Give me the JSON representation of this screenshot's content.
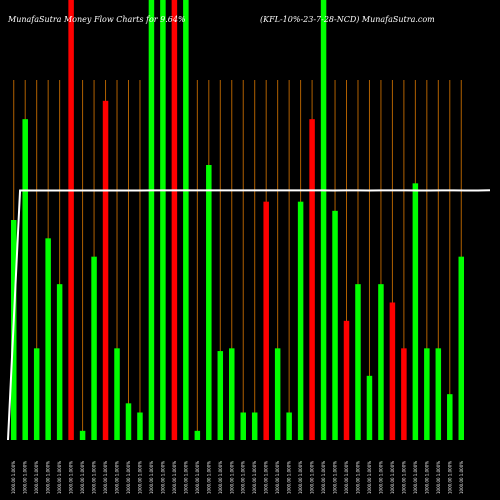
{
  "header": {
    "left": "MunafaSutra Money Flow Charts for 9.64% ",
    "right": "(KFL-10%-23-7-28-NCD) MunafaSutra.com"
  },
  "chart_data": {
    "type": "bar",
    "colors": {
      "up": "#00ff00",
      "down": "#ff0000",
      "grid": "#b06000",
      "line": "#ffffff",
      "background": "#000000"
    },
    "bars": [
      {
        "x": "1000.00 1.000%",
        "value": 24,
        "color": "up"
      },
      {
        "x": "1000.00 1.000%",
        "value": 35,
        "color": "up"
      },
      {
        "x": "1000.00 1.000%",
        "value": 10,
        "color": "up"
      },
      {
        "x": "1000.00 1.000%",
        "value": 22,
        "color": "up"
      },
      {
        "x": "1000.00 1.000%",
        "value": 17,
        "color": "up"
      },
      {
        "x": "1000.00 1.000%",
        "value": 48,
        "color": "down"
      },
      {
        "x": "1000.00 1.000%",
        "value": 1,
        "color": "up"
      },
      {
        "x": "1000.00 1.000%",
        "value": 20,
        "color": "up"
      },
      {
        "x": "1000.00 1.000%",
        "value": 37,
        "color": "down"
      },
      {
        "x": "1000.00 1.000%",
        "value": 10,
        "color": "up"
      },
      {
        "x": "1000.00 1.000%",
        "value": 4,
        "color": "up"
      },
      {
        "x": "1000.00 1.000%",
        "value": 3,
        "color": "up"
      },
      {
        "x": "1000.00 1.000%",
        "value": 48,
        "color": "up"
      },
      {
        "x": "1000.00 1.000%",
        "value": 48,
        "color": "up"
      },
      {
        "x": "1000.00 1.000%",
        "value": 48,
        "color": "down"
      },
      {
        "x": "1000.00 1.000%",
        "value": 48,
        "color": "up"
      },
      {
        "x": "1000.00 1.000%",
        "value": 1,
        "color": "up"
      },
      {
        "x": "1000.00 1.000%",
        "value": 30,
        "color": "up"
      },
      {
        "x": "1000.00 1.000%",
        "value": 9.7,
        "color": "up"
      },
      {
        "x": "1000.00 1.000%",
        "value": 10,
        "color": "up"
      },
      {
        "x": "1000.00 1.000%",
        "value": 3,
        "color": "up"
      },
      {
        "x": "1000.00 1.000%",
        "value": 3,
        "color": "up"
      },
      {
        "x": "1000.00 1.000%",
        "value": 26,
        "color": "down"
      },
      {
        "x": "1000.00 1.000%",
        "value": 10,
        "color": "up"
      },
      {
        "x": "1000.00 1.000%",
        "value": 3,
        "color": "up"
      },
      {
        "x": "1000.00 1.000%",
        "value": 26,
        "color": "up"
      },
      {
        "x": "1000.00 1.000%",
        "value": 35,
        "color": "down"
      },
      {
        "x": "1000.00 1.000%",
        "value": 48,
        "color": "up"
      },
      {
        "x": "1000.00 1.000%",
        "value": 25,
        "color": "up"
      },
      {
        "x": "1000.00 1.000%",
        "value": 13,
        "color": "down"
      },
      {
        "x": "1000.00 1.000%",
        "value": 17,
        "color": "up"
      },
      {
        "x": "1000.00 1.000%",
        "value": 7,
        "color": "up"
      },
      {
        "x": "1000.00 1.000%",
        "value": 17,
        "color": "up"
      },
      {
        "x": "1000.00 1.000%",
        "value": 15,
        "color": "down"
      },
      {
        "x": "1000.00 1.000%",
        "value": 10,
        "color": "down"
      },
      {
        "x": "1000.00 1.000%",
        "value": 28,
        "color": "up"
      },
      {
        "x": "1000.00 1.000%",
        "value": 10,
        "color": "up"
      },
      {
        "x": "1000.00 1.000%",
        "value": 10,
        "color": "up"
      },
      {
        "x": "1000.00 1.000%",
        "value": 5,
        "color": "up"
      },
      {
        "x": "1000.00 1.000%",
        "value": 20,
        "color": "up"
      }
    ],
    "price_line": [
      0,
      1000,
      1000,
      1000,
      1000,
      1000.1,
      1000.1,
      1000.1,
      1000.1,
      1000.1,
      1000.1,
      1000.1,
      1000.3,
      1000.3,
      1000.3,
      1000.3,
      1000.3,
      1000.3,
      1000.3,
      1000.35,
      1000.35,
      1000.35,
      1000.35,
      1000.35,
      1000.3,
      1000.3,
      1000.45,
      1000.15,
      1000.35,
      1000.35,
      1000.25,
      1000.35,
      1000.35,
      1000.4,
      1000.25,
      1000.25,
      1000.4,
      1000.45,
      1000.25,
      1000.25,
      1001
    ],
    "ylim": [
      0,
      48
    ],
    "line_ylim": [
      0,
      1002
    ],
    "grid": true
  }
}
